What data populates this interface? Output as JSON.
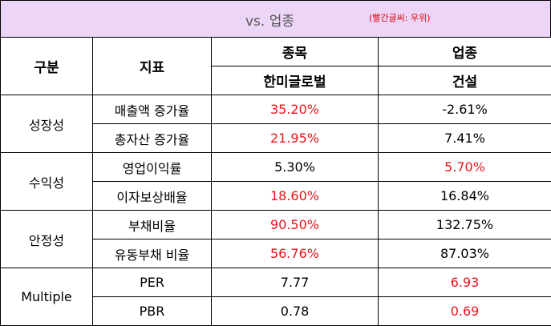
{
  "title": {
    "main": "vs. 업종",
    "note": "(빨간글씨: 우위)"
  },
  "colors": {
    "header_bg": "#ecd5f7",
    "highlight": "#e8141c"
  },
  "header": {
    "category": "구분",
    "indicator": "지표",
    "stock_group": "종목",
    "stock_name": "한미글로벌",
    "industry_group": "업종",
    "industry_name": "건설"
  },
  "groups": [
    {
      "name": "성장성",
      "rows": [
        {
          "indicator": "매출액 증가율",
          "stock": "35.20%",
          "industry": "-2.61%",
          "winner": "stock"
        },
        {
          "indicator": "총자산 증가율",
          "stock": "21.95%",
          "industry": "7.41%",
          "winner": "stock"
        }
      ]
    },
    {
      "name": "수익성",
      "rows": [
        {
          "indicator": "영업이익률",
          "stock": "5.30%",
          "industry": "5.70%",
          "winner": "industry"
        },
        {
          "indicator": "이자보상배율",
          "stock": "18.60%",
          "industry": "16.84%",
          "winner": "stock"
        }
      ]
    },
    {
      "name": "안정성",
      "rows": [
        {
          "indicator": "부채비율",
          "stock": "90.50%",
          "industry": "132.75%",
          "winner": "stock"
        },
        {
          "indicator": "유동부채 비율",
          "stock": "56.76%",
          "industry": "87.03%",
          "winner": "stock"
        }
      ]
    },
    {
      "name": "Multiple",
      "rows": [
        {
          "indicator": "PER",
          "stock": "7.77",
          "industry": "6.93",
          "winner": "industry"
        },
        {
          "indicator": "PBR",
          "stock": "0.78",
          "industry": "0.69",
          "winner": "industry"
        }
      ]
    }
  ]
}
